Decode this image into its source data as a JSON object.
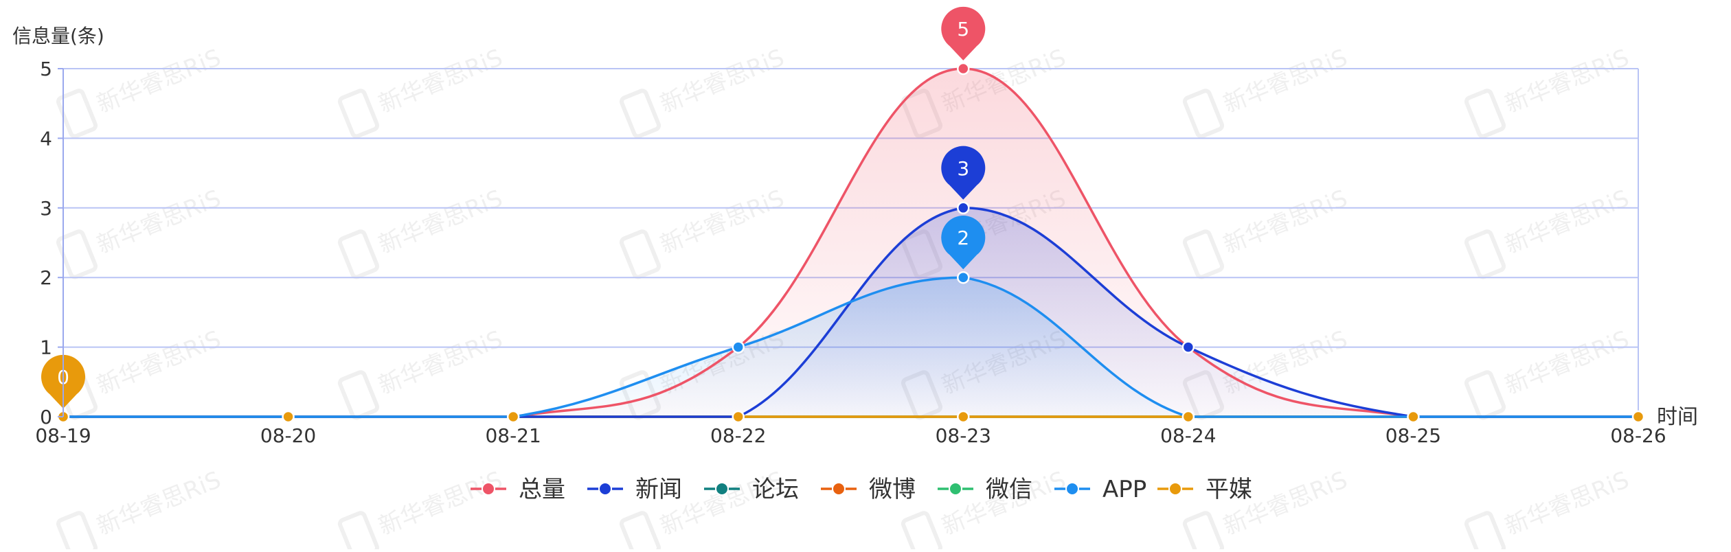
{
  "chart_data": {
    "type": "line",
    "title": "",
    "ylabel": "信息量(条)",
    "xlabel": "时间",
    "categories": [
      "08-19",
      "08-20",
      "08-21",
      "08-22",
      "08-23",
      "08-24",
      "08-25",
      "08-26"
    ],
    "ylim": [
      0,
      5
    ],
    "yticks": [
      0,
      1,
      2,
      3,
      4,
      5
    ],
    "grid": true,
    "legend_position": "bottom-center",
    "series": [
      {
        "name": "总量",
        "color": "#ee5467",
        "values": [
          0,
          0,
          0,
          1,
          5,
          1,
          0,
          0
        ],
        "area": true
      },
      {
        "name": "新闻",
        "color": "#1c3ed6",
        "values": [
          0,
          0,
          0,
          0,
          3,
          1,
          0,
          0
        ],
        "area": true
      },
      {
        "name": "论坛",
        "color": "#118080",
        "values": [
          0,
          0,
          0,
          0,
          0,
          0,
          0,
          0
        ]
      },
      {
        "name": "微博",
        "color": "#e8610f",
        "values": [
          0,
          0,
          0,
          0,
          0,
          0,
          0,
          0
        ]
      },
      {
        "name": "微信",
        "color": "#2fbf71",
        "values": [
          0,
          0,
          0,
          0,
          0,
          0,
          0,
          0
        ]
      },
      {
        "name": "APP",
        "color": "#1e8ef0",
        "values": [
          0,
          0,
          0,
          1,
          2,
          0,
          0,
          0
        ],
        "area": true
      },
      {
        "name": "平媒",
        "color": "#e89a0c",
        "values": [
          0,
          0,
          0,
          0,
          0,
          0,
          0,
          0
        ]
      }
    ],
    "markers": [
      {
        "series": "总量",
        "category": "08-23",
        "label": "5"
      },
      {
        "series": "新闻",
        "category": "08-23",
        "label": "3"
      },
      {
        "series": "APP",
        "category": "08-23",
        "label": "2"
      },
      {
        "series": "平媒",
        "category": "08-19",
        "label": "0"
      }
    ],
    "watermark": "新华睿思RiS"
  }
}
